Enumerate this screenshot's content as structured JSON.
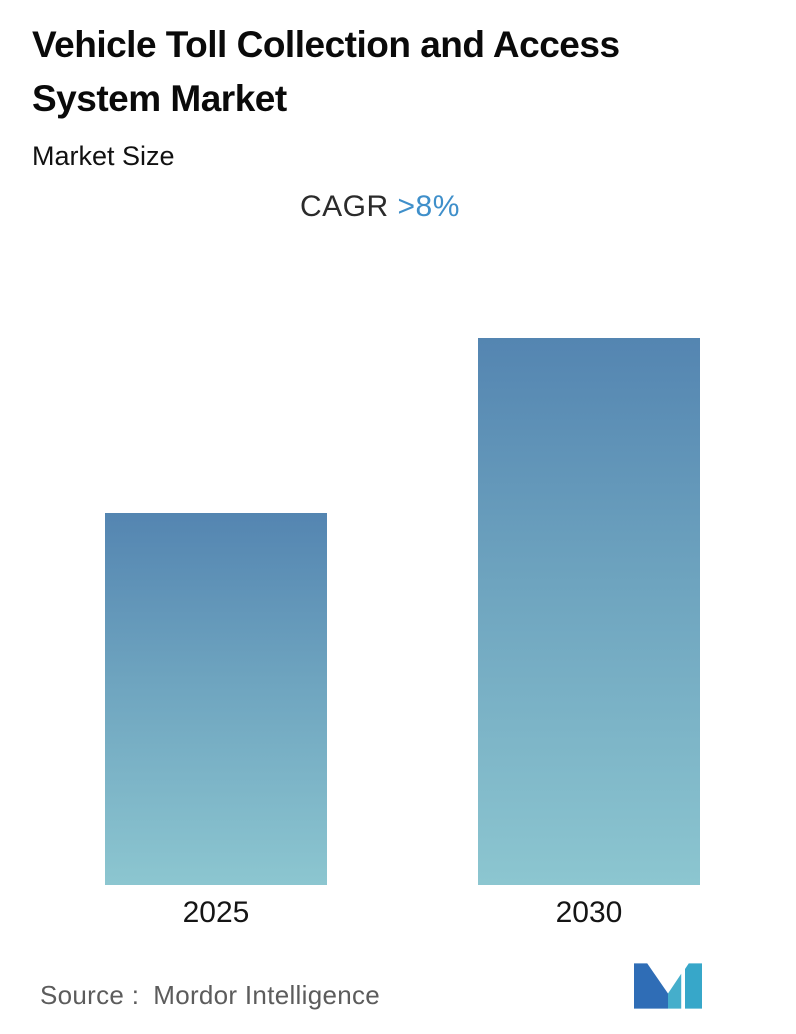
{
  "header": {
    "title": "Vehicle Toll Collection and Access System Market",
    "subtitle": "Market Size",
    "cagr_label": "CAGR",
    "cagr_value": ">8%"
  },
  "chart_data": {
    "type": "bar",
    "title": "Vehicle Toll Collection and Access System Market",
    "subtitle": "Market Size",
    "annotation": "CAGR >8%",
    "categories": [
      "2025",
      "2030"
    ],
    "values": [
      1.0,
      1.47
    ],
    "xlabel": "",
    "ylabel": "",
    "ylim": [
      0,
      1.55
    ],
    "grid": false,
    "legend": false,
    "value_axis_visible": false,
    "bar_gradient_top": "#5485b1",
    "bar_gradient_bottom": "#8cc6d0"
  },
  "footer": {
    "source_label": "Source :",
    "source_value": "Mordor Intelligence",
    "logo": "mordor-intelligence-logo"
  },
  "colors": {
    "accent_blue": "#3f8fca",
    "text_dark": "#0a0a0a",
    "text_gray": "#5c5c5c",
    "logo_blue": "#2f6db6",
    "logo_teal": "#45aecb"
  }
}
